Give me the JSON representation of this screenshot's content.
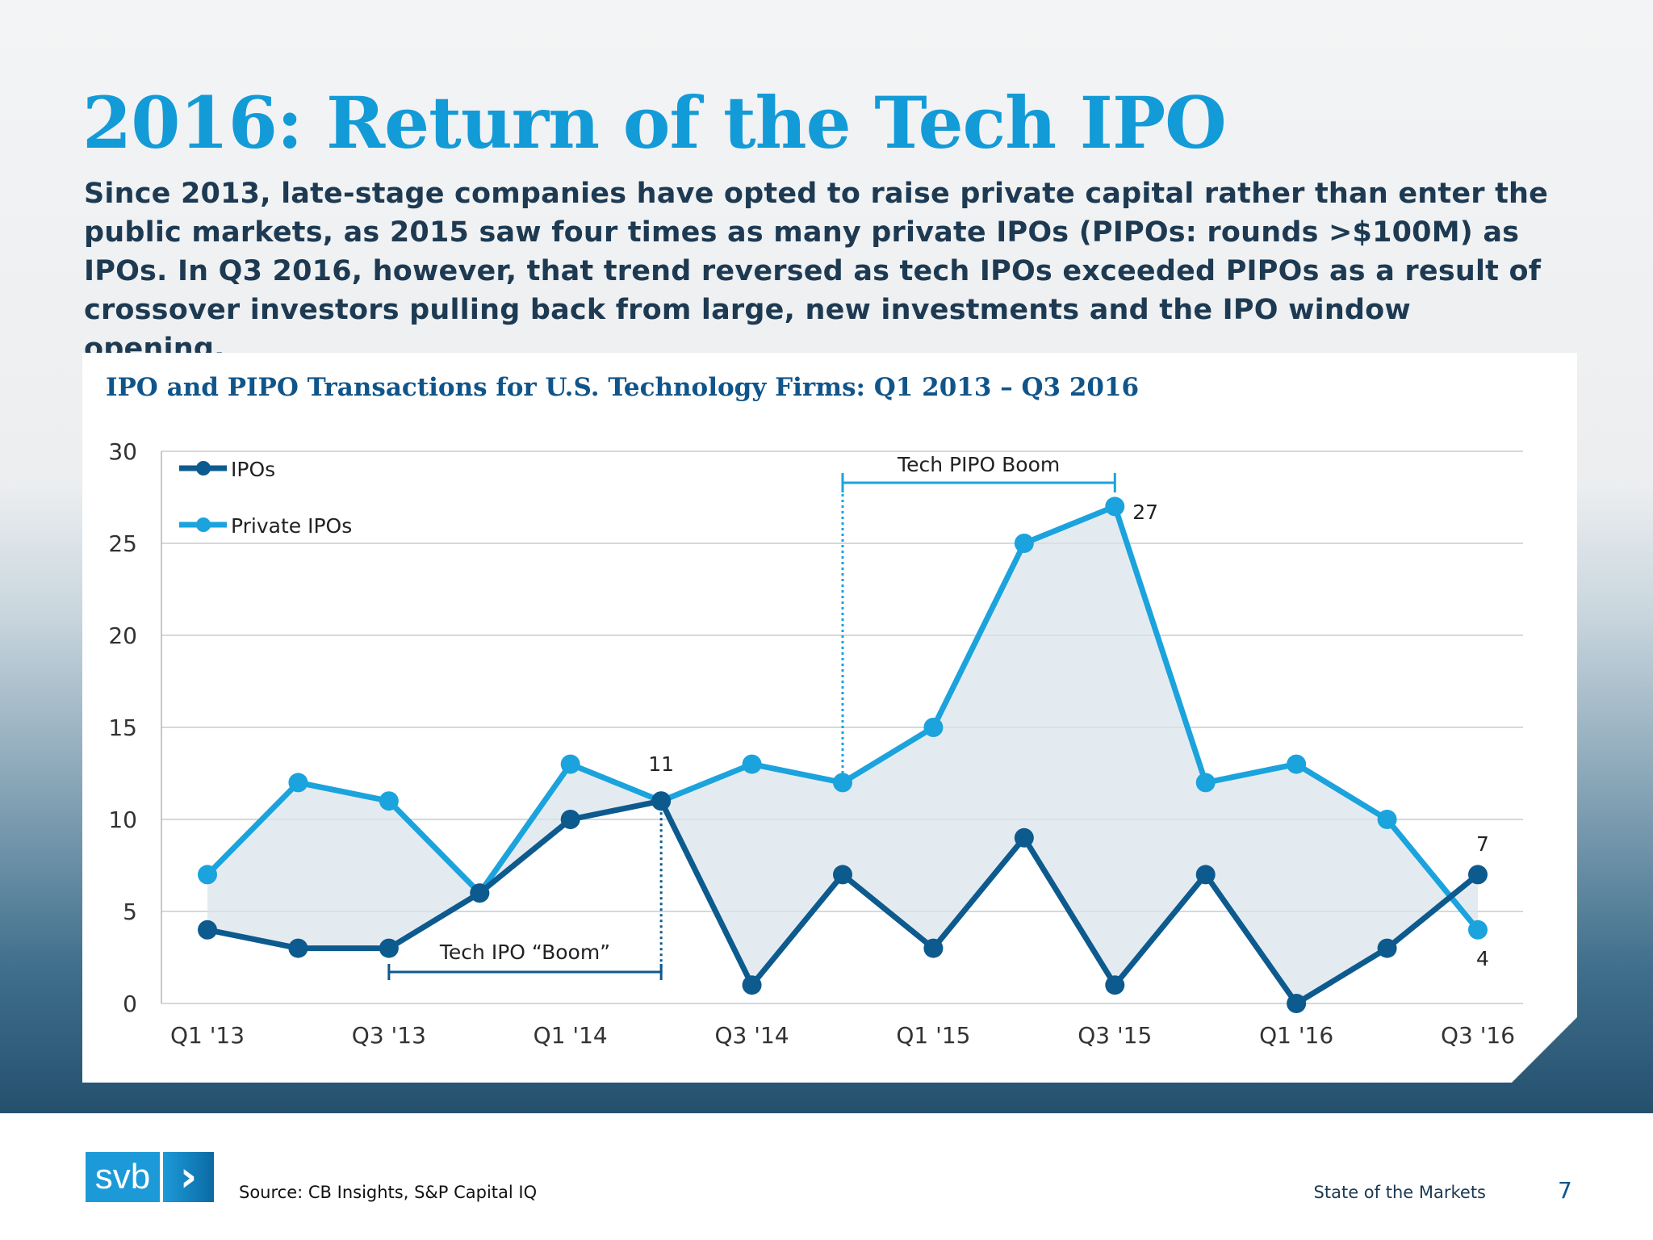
{
  "title": "2016: Return of the Tech IPO",
  "intro": "Since 2013, late-stage companies have opted to raise private capital rather than enter the public markets, as 2015 saw four times as many private IPOs (PIPOs: rounds >$100M) as IPOs. In Q3 2016, however, that trend reversed as tech IPOs exceeded PIPOs as a result of crossover investors pulling back from large, new investments and the IPO window opening.",
  "chart_data": {
    "type": "line",
    "title": "IPO and PIPO Transactions for U.S. Technology Firms: Q1 2013 – Q3 2016",
    "categories": [
      "Q1 '13",
      "Q2 '13",
      "Q3 '13",
      "Q4 '13",
      "Q1 '14",
      "Q2 '14",
      "Q3 '14",
      "Q4 '14",
      "Q1 '15",
      "Q2 '15",
      "Q3 '15",
      "Q4 '15",
      "Q1 '16",
      "Q2 '16",
      "Q3 '16"
    ],
    "x_tick_labels": [
      "Q1 '13",
      "Q3 '13",
      "Q1 '14",
      "Q3 '14",
      "Q1 '15",
      "Q3 '15",
      "Q1 '16",
      "Q3 '16"
    ],
    "y_ticks": [
      0,
      5,
      10,
      15,
      20,
      25,
      30
    ],
    "ylim": [
      0,
      30
    ],
    "grid": true,
    "legend_position": "top-left",
    "series": [
      {
        "name": "IPOs",
        "color": "#0d5a8e",
        "values": [
          4,
          3,
          3,
          6,
          10,
          11,
          1,
          7,
          3,
          9,
          1,
          7,
          0,
          3,
          7
        ]
      },
      {
        "name": "Private IPOs",
        "color": "#1ba3dd",
        "values": [
          7,
          12,
          11,
          6,
          13,
          11,
          13,
          12,
          15,
          25,
          27,
          12,
          13,
          10,
          4
        ]
      }
    ],
    "data_labels": [
      {
        "text": "11",
        "category": "Q2 '14"
      },
      {
        "text": "27",
        "category": "Q3 '15"
      },
      {
        "text": "7",
        "category": "Q3 '16"
      },
      {
        "text": "4",
        "category": "Q3 '16"
      }
    ],
    "annotations": [
      {
        "text": "Tech PIPO Boom",
        "from": "Q4 '14",
        "to": "Q3 '15"
      },
      {
        "text": "Tech IPO “Boom”",
        "from": "Q3 '13",
        "to": "Q2 '14"
      }
    ]
  },
  "footer": {
    "logo_text": "svb",
    "source": "Source: CB Insights, S&P Capital IQ",
    "deck_title": "State of the Markets",
    "page_number": "7"
  }
}
